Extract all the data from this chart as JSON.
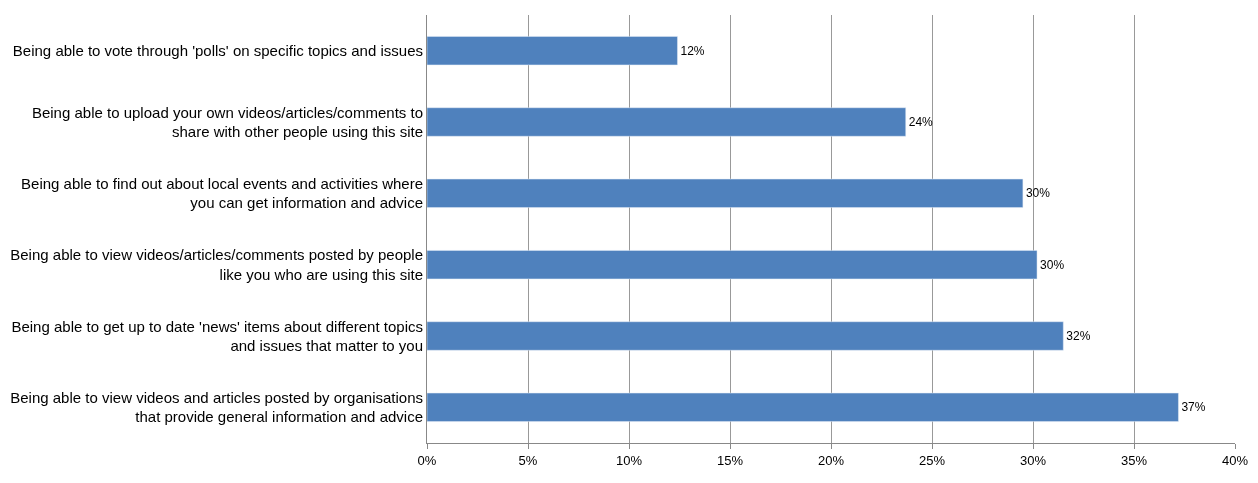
{
  "chart_data": {
    "type": "bar",
    "orientation": "horizontal",
    "categories": [
      "Being able to vote through 'polls' on specific topics and issues",
      "Being able to upload your own videos/articles/comments to\nshare with other people using this site",
      "Being able to find out about local events and activities where\nyou can get information and advice",
      "Being able to view videos/articles/comments posted by people\nlike you who are using this site",
      "Being able to get up to date 'news' items about different topics\nand issues that matter to you",
      "Being able to view videos and articles posted by organisations\nthat provide general information and advice"
    ],
    "values": [
      12.4,
      23.7,
      29.5,
      30.2,
      31.5,
      37.2
    ],
    "value_labels": [
      "12%",
      "24%",
      "30%",
      "30%",
      "32%",
      "37%"
    ],
    "color": "#4f81bd",
    "xlim": [
      0,
      40
    ],
    "xticks": [
      {
        "value": 0,
        "label": "0%"
      },
      {
        "value": 5,
        "label": "5%"
      },
      {
        "value": 10,
        "label": "10%"
      },
      {
        "value": 15,
        "label": "15%"
      },
      {
        "value": 20,
        "label": "20%"
      },
      {
        "value": 25,
        "label": "25%"
      },
      {
        "value": 30,
        "label": "30%"
      },
      {
        "value": 35,
        "label": "35%"
      },
      {
        "value": 40,
        "label": "40%"
      }
    ],
    "grid": "x",
    "legend": false
  }
}
